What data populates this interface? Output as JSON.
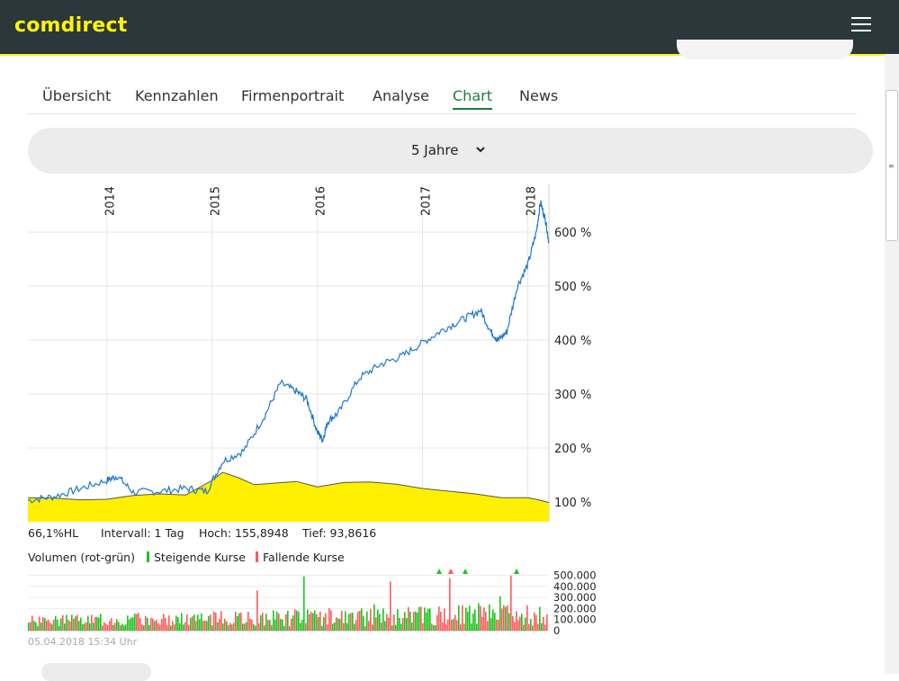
{
  "header": {
    "logo": "comdirect",
    "menu_icon": "hamburger-icon"
  },
  "tabs": [
    {
      "label": "Übersicht",
      "active": false
    },
    {
      "label": "Kennzahlen",
      "active": false
    },
    {
      "label": "Firmenportrait",
      "active": false
    },
    {
      "label": "Analyse",
      "active": false
    },
    {
      "label": "Chart",
      "active": true
    },
    {
      "label": "News",
      "active": false
    }
  ],
  "period": {
    "label": "5 Jahre",
    "icon": "chevron-down-icon"
  },
  "chart_data": [
    {
      "type": "line",
      "x_ticks": [
        "2014",
        "2015",
        "2016",
        "2017",
        "2018"
      ],
      "y_ticks": [
        "600 %",
        "500 %",
        "400 %",
        "300 %",
        "200 %",
        "100 %"
      ],
      "ylim": [
        100,
        670
      ],
      "series": [
        {
          "color": "#1f77d0",
          "x": [
            2013.25,
            2013.5,
            2013.75,
            2014.0,
            2014.1,
            2014.25,
            2014.5,
            2014.75,
            2014.95,
            2015.1,
            2015.3,
            2015.5,
            2015.65,
            2015.8,
            2015.9,
            2016.0,
            2016.05,
            2016.1,
            2016.2,
            2016.4,
            2016.6,
            2016.8,
            2017.0,
            2017.2,
            2017.4,
            2017.55,
            2017.65,
            2017.72,
            2017.8,
            2017.9,
            2018.0,
            2018.08,
            2018.12,
            2018.17,
            2018.2
          ],
          "y": [
            103,
            110,
            125,
            140,
            148,
            118,
            120,
            125,
            120,
            175,
            195,
            260,
            320,
            305,
            290,
            230,
            215,
            250,
            265,
            330,
            355,
            370,
            395,
            420,
            440,
            455,
            415,
            400,
            415,
            500,
            540,
            600,
            655,
            620,
            580
          ]
        },
        {
          "type": "area",
          "color": "#fff000",
          "x": [
            2013.25,
            2013.5,
            2013.75,
            2014.0,
            2014.25,
            2014.5,
            2014.75,
            2015.0,
            2015.1,
            2015.25,
            2015.4,
            2015.6,
            2015.8,
            2016.0,
            2016.25,
            2016.5,
            2016.75,
            2017.0,
            2017.25,
            2017.5,
            2017.75,
            2018.0,
            2018.1,
            2018.2
          ],
          "y": [
            108,
            107,
            104,
            105,
            112,
            115,
            113,
            140,
            155,
            145,
            132,
            135,
            138,
            128,
            136,
            137,
            133,
            125,
            120,
            115,
            108,
            108,
            104,
            99
          ]
        }
      ]
    },
    {
      "type": "bar",
      "title": "Volumen (rot-grün)",
      "legend": [
        "Steigende Kurse",
        "Fallende Kurse"
      ],
      "colors": {
        "up": "#1ec31e",
        "down": "#ff5a5a"
      },
      "y_ticks": [
        "500.000",
        "400.000",
        "300.000",
        "200.000",
        "100.000",
        "0"
      ],
      "ylim": [
        0,
        520000
      ]
    }
  ],
  "stats": {
    "hl": "66,1%HL",
    "interval": "Intervall: 1 Tag",
    "hoch": "Hoch: 155,8948",
    "tief": "Tief: 93,8616"
  },
  "volume_legend": {
    "title": "Volumen (rot-grün)",
    "up": "Steigende Kurse",
    "down": "Fallende Kurse"
  },
  "timestamp": "05.04.2018 15:34 Uhr"
}
